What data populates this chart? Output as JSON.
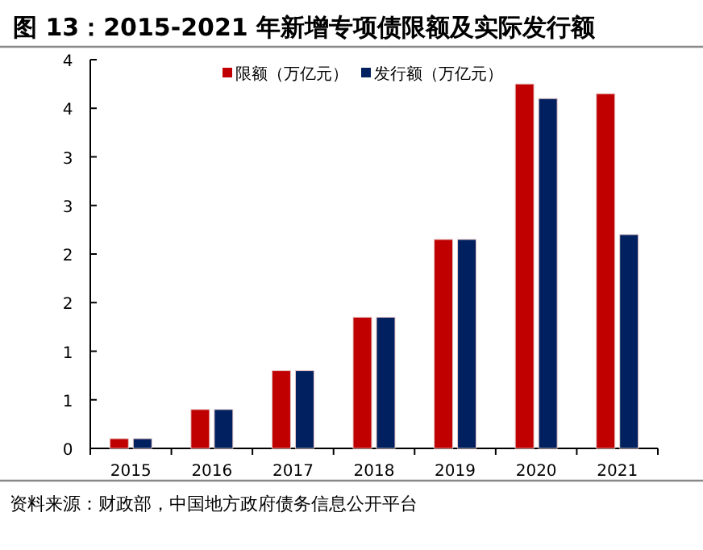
{
  "chart_data": {
    "type": "bar",
    "title": "图 13：2015-2021 年新增专项债限额及实际发行额",
    "categories": [
      "2015",
      "2016",
      "2017",
      "2018",
      "2019",
      "2020",
      "2021"
    ],
    "series": [
      {
        "name": "限额（万亿元）",
        "color": "#c00000",
        "values": [
          0.1,
          0.4,
          0.8,
          1.35,
          2.15,
          3.75,
          3.65
        ]
      },
      {
        "name": "发行额（万亿元）",
        "color": "#002060",
        "values": [
          0.1,
          0.4,
          0.8,
          1.35,
          2.15,
          3.6,
          2.2
        ]
      }
    ],
    "ylim": [
      0,
      4
    ],
    "yticks": [
      0,
      {
        "value": 0.5,
        "label": "1"
      },
      1,
      {
        "value": 1.5,
        "label": "2"
      },
      2,
      {
        "value": 2.5,
        "label": "3"
      },
      3,
      {
        "value": 3.5,
        "label": "4"
      },
      4
    ],
    "legend": "top right",
    "grid": false,
    "annotations": [
      "资料来源：财政部，中国地方政府债务信息公开平台"
    ]
  }
}
